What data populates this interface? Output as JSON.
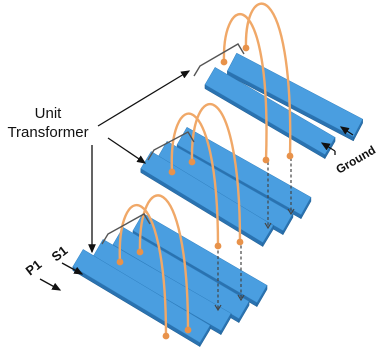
{
  "labels": {
    "unit_transformer_line1": "Unit",
    "unit_transformer_line2": "Transformer",
    "p1": "P1",
    "s1": "S1",
    "ground": "Ground"
  },
  "colors": {
    "bar_top": "#4a9ee0",
    "bar_side": "#2a72b0",
    "arc": "#f0a868",
    "node": "#e8924a",
    "bracket": "#555555",
    "arrow": "#111111"
  }
}
